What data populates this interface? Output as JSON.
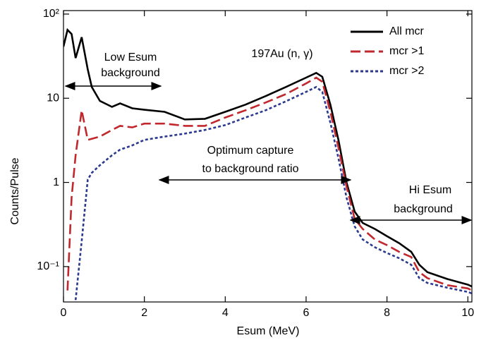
{
  "chart_data": {
    "type": "line",
    "title": "197Au (n, γ)",
    "xlabel": "Esum (MeV)",
    "ylabel": "Counts/Pulse",
    "log_y": true,
    "legend": "upper right",
    "annotations": [
      "Low Esum",
      "background",
      "Optimum capture",
      "to background ratio",
      "Hi Esum",
      "background"
    ],
    "xlim": [
      0,
      10.1
    ],
    "ylim": [
      0.038,
      110
    ],
    "xticks": [
      0,
      2,
      4,
      6,
      8,
      10
    ],
    "yticks": [
      {
        "value": 0.1,
        "label": "10⁻¹"
      },
      1,
      10,
      {
        "value": 100,
        "label": "10²"
      }
    ],
    "x": [
      0,
      0.1,
      0.2,
      0.3,
      0.45,
      0.6,
      0.7,
      0.9,
      1.2,
      1.4,
      1.7,
      2,
      2.5,
      3,
      3.5,
      4,
      4.5,
      5,
      5.5,
      6,
      6.25,
      6.4,
      6.6,
      6.8,
      7,
      7.2,
      7.4,
      7.7,
      8,
      8.3,
      8.6,
      8.8,
      9,
      9.5,
      10,
      10.1
    ],
    "series": [
      {
        "name": "All mcr",
        "color": "#000000",
        "dash": "none",
        "values": [
          41,
          65,
          58,
          30,
          53,
          22,
          13.6,
          9.3,
          7.9,
          8.7,
          7.6,
          7.3,
          6.9,
          5.6,
          5.7,
          6.9,
          8.4,
          10.6,
          13.6,
          17.6,
          20,
          18,
          8.4,
          3.2,
          1.0,
          0.45,
          0.33,
          0.28,
          0.23,
          0.19,
          0.15,
          0.105,
          0.086,
          0.071,
          0.061,
          0.058
        ]
      },
      {
        "name": "mcr >1",
        "color": "#c0282d",
        "dash": "14,6",
        "values": [
          null,
          0.052,
          0.66,
          2.1,
          7.2,
          3.2,
          3.3,
          3.5,
          4.2,
          4.7,
          4.5,
          5.0,
          5.0,
          4.7,
          4.7,
          5.9,
          7.2,
          8.9,
          11.2,
          15,
          17.6,
          15.7,
          6.9,
          2.6,
          0.89,
          0.37,
          0.28,
          0.21,
          0.18,
          0.15,
          0.13,
          0.086,
          0.073,
          0.06,
          0.055,
          0.052
        ]
      },
      {
        "name": "mcr >2",
        "color": "#2b3a8f",
        "dash": "4,3",
        "values": [
          null,
          null,
          null,
          0.04,
          0.2,
          1.08,
          1.3,
          1.6,
          2.1,
          2.45,
          2.75,
          3.2,
          3.5,
          3.8,
          4.2,
          4.8,
          5.9,
          7.2,
          9.2,
          11.9,
          13.6,
          11.9,
          5.1,
          1.94,
          0.66,
          0.3,
          0.21,
          0.17,
          0.145,
          0.126,
          0.105,
          0.073,
          0.064,
          0.056,
          0.05,
          0.048
        ]
      }
    ]
  }
}
